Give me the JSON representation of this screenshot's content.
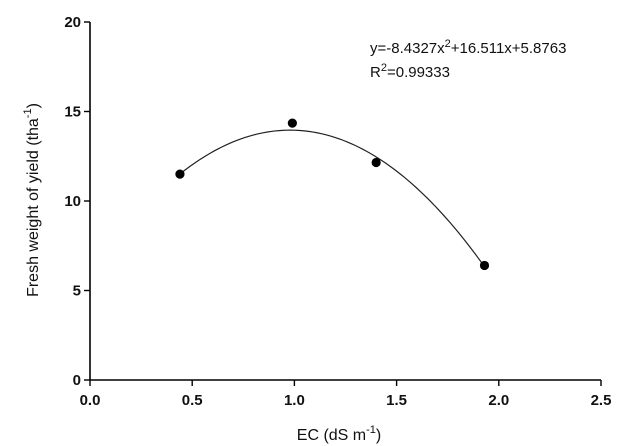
{
  "chart_data": {
    "type": "scatter",
    "xlabel": {
      "prefix": "EC (dS m",
      "sup": "-1",
      "suffix": ")"
    },
    "ylabel": {
      "prefix": "Fresh weight of yield (tha",
      "sup": "-1",
      "suffix": ")"
    },
    "xlim": [
      0.0,
      2.5
    ],
    "ylim": [
      0,
      20
    ],
    "xticks": [
      "0.0",
      "0.5",
      "1.0",
      "1.5",
      "2.0",
      "2.5"
    ],
    "yticks": [
      "0",
      "5",
      "10",
      "15",
      "20"
    ],
    "series": [
      {
        "points": [
          {
            "x": 0.44,
            "y": 11.5
          },
          {
            "x": 0.99,
            "y": 14.35
          },
          {
            "x": 1.4,
            "y": 12.15
          },
          {
            "x": 1.93,
            "y": 6.4
          }
        ]
      }
    ],
    "fit": {
      "a": -8.4327,
      "b": 16.511,
      "c": 5.8763,
      "x_range": [
        0.44,
        1.93
      ],
      "equation": {
        "pre": "y=-8.4327x",
        "sup": "2",
        "post": "+16.511x+5.8763"
      },
      "r2": {
        "pre": "R",
        "sup": "2",
        "post": "=0.99333"
      }
    },
    "grid": false,
    "legend": "none"
  }
}
